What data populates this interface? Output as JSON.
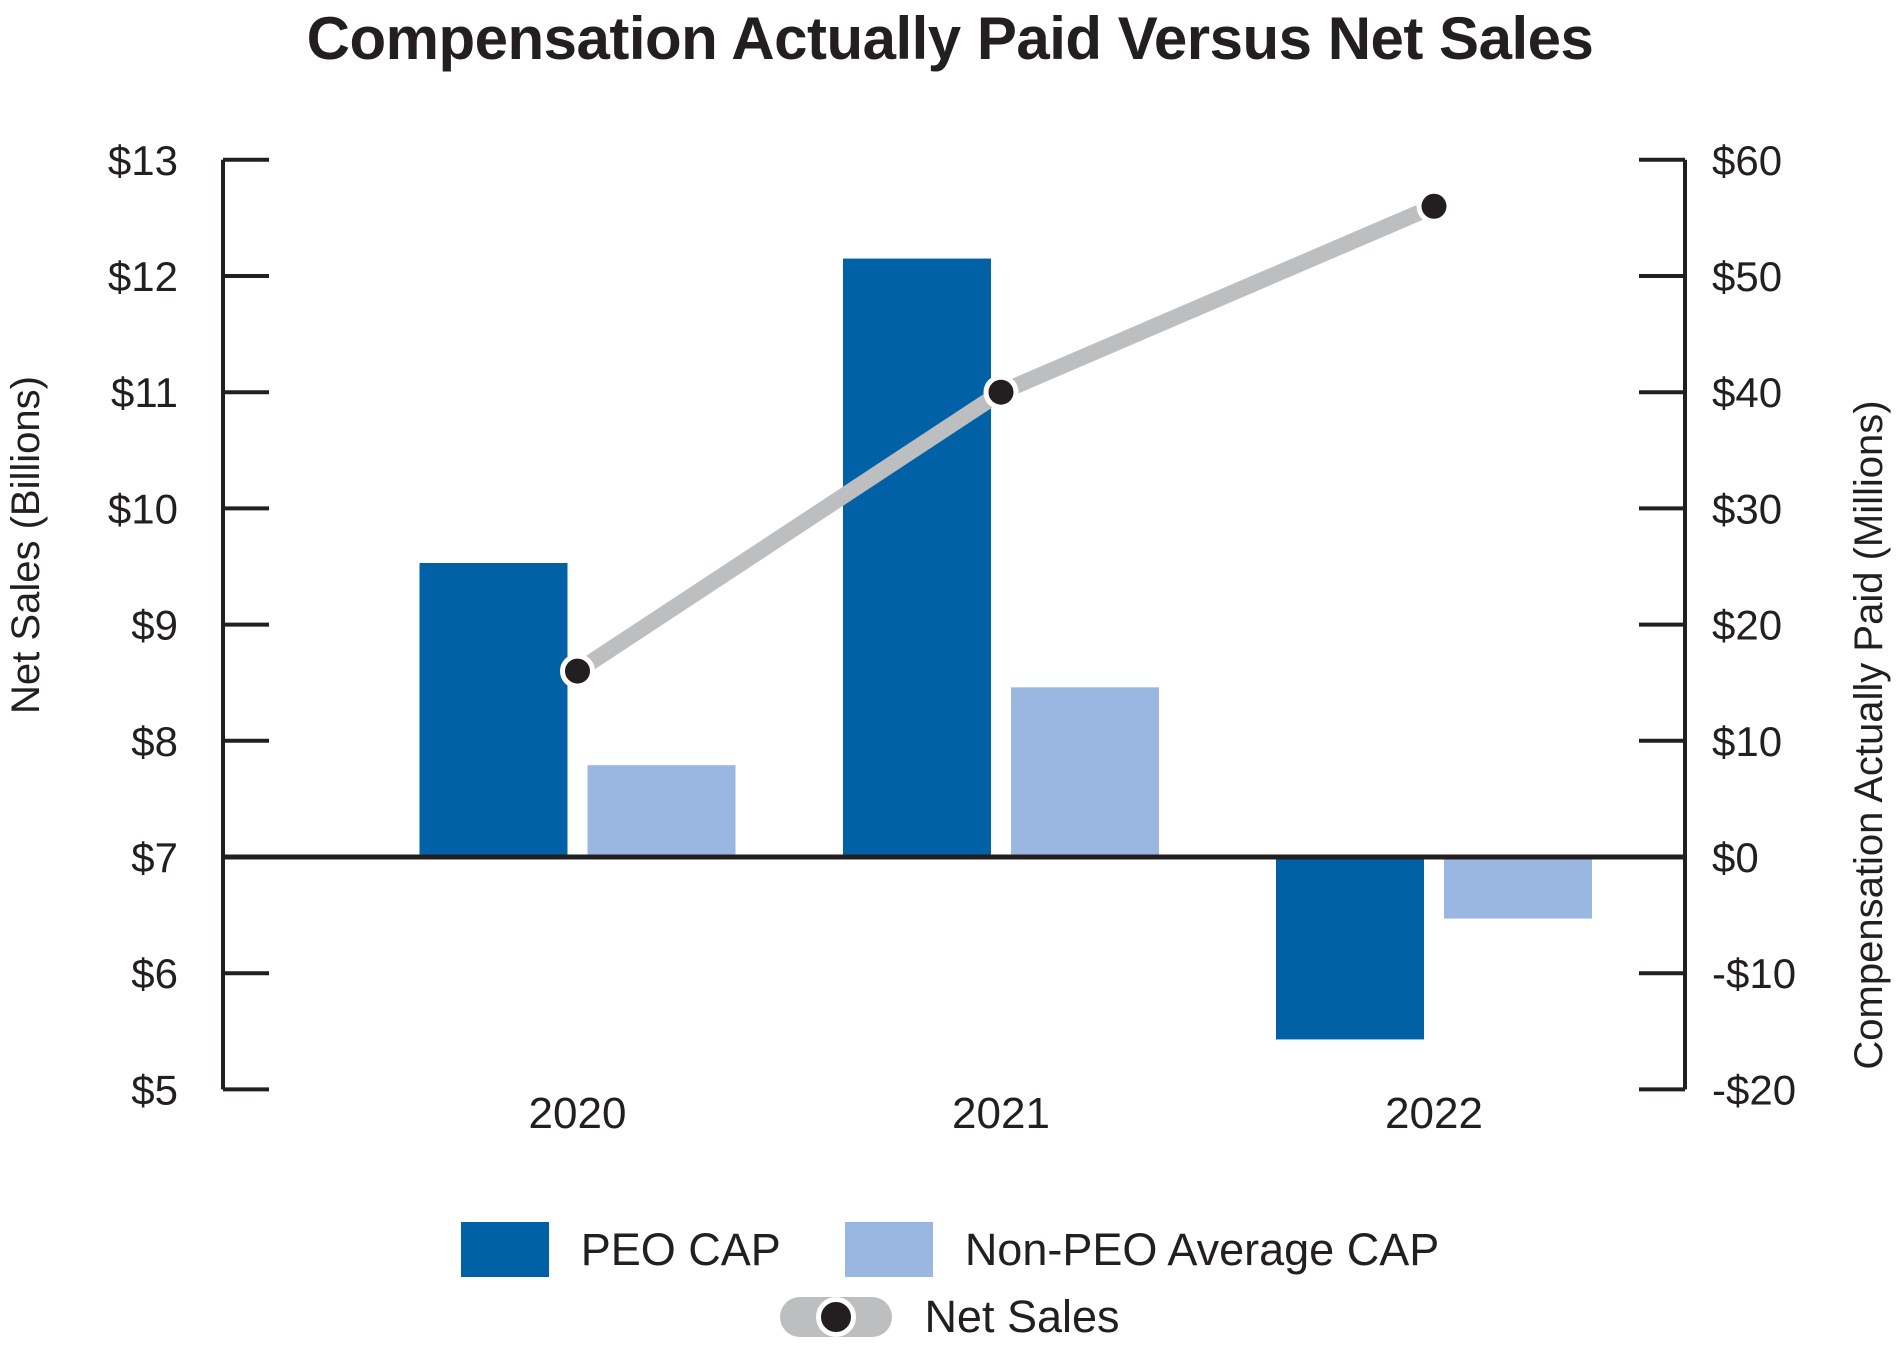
{
  "title": "Compensation Actually Paid Versus Net Sales",
  "chart_data": {
    "type": "combo-bar-line",
    "title": "Compensation Actually Paid Versus Net Sales",
    "categories": [
      "2020",
      "2021",
      "2022"
    ],
    "series": [
      {
        "name": "PEO CAP",
        "type": "bar",
        "axis": "right",
        "unit": "USD millions",
        "color": "#0061A6",
        "values": [
          25.3,
          51.5,
          -15.7
        ]
      },
      {
        "name": "Non-PEO Average CAP",
        "type": "bar",
        "axis": "right",
        "unit": "USD millions",
        "color": "#99B7E1",
        "values": [
          7.9,
          14.6,
          -5.3
        ]
      },
      {
        "name": "Net Sales",
        "type": "line",
        "axis": "left",
        "unit": "USD billions",
        "color": "#BCBEC0",
        "marker_color": "#231F20",
        "values": [
          8.6,
          11.0,
          12.6
        ]
      }
    ],
    "left_axis": {
      "label": "Net Sales (Billions)",
      "range": [
        5,
        13
      ],
      "baseline_value": 7,
      "ticks": [
        {
          "value": 13,
          "label": "$13"
        },
        {
          "value": 12,
          "label": "$12"
        },
        {
          "value": 11,
          "label": "$11"
        },
        {
          "value": 10,
          "label": "$10"
        },
        {
          "value": 9,
          "label": "$9"
        },
        {
          "value": 8,
          "label": "$8"
        },
        {
          "value": 7,
          "label": "$7"
        },
        {
          "value": 6,
          "label": "$6"
        },
        {
          "value": 5,
          "label": "$5"
        }
      ]
    },
    "right_axis": {
      "label": "Compensation Actually Paid (Millions)",
      "range": [
        -20,
        60
      ],
      "baseline_value": 0,
      "ticks": [
        {
          "value": 60,
          "label": "$60"
        },
        {
          "value": 50,
          "label": "$50"
        },
        {
          "value": 40,
          "label": "$40"
        },
        {
          "value": 30,
          "label": "$30"
        },
        {
          "value": 20,
          "label": "$20"
        },
        {
          "value": 10,
          "label": "$10"
        },
        {
          "value": 0,
          "label": "$0"
        },
        {
          "value": -10,
          "label": "-$10"
        },
        {
          "value": -20,
          "label": "-$20"
        }
      ]
    },
    "grid": false,
    "legend_position": "bottom"
  },
  "colors": {
    "text": "#231F20",
    "axis": "#231F20",
    "peo_cap": "#0061A6",
    "non_peo_cap": "#99B7E1",
    "net_sales_line": "#BCBEC0",
    "net_sales_marker": "#231F20",
    "background": "#FFFFFF"
  }
}
